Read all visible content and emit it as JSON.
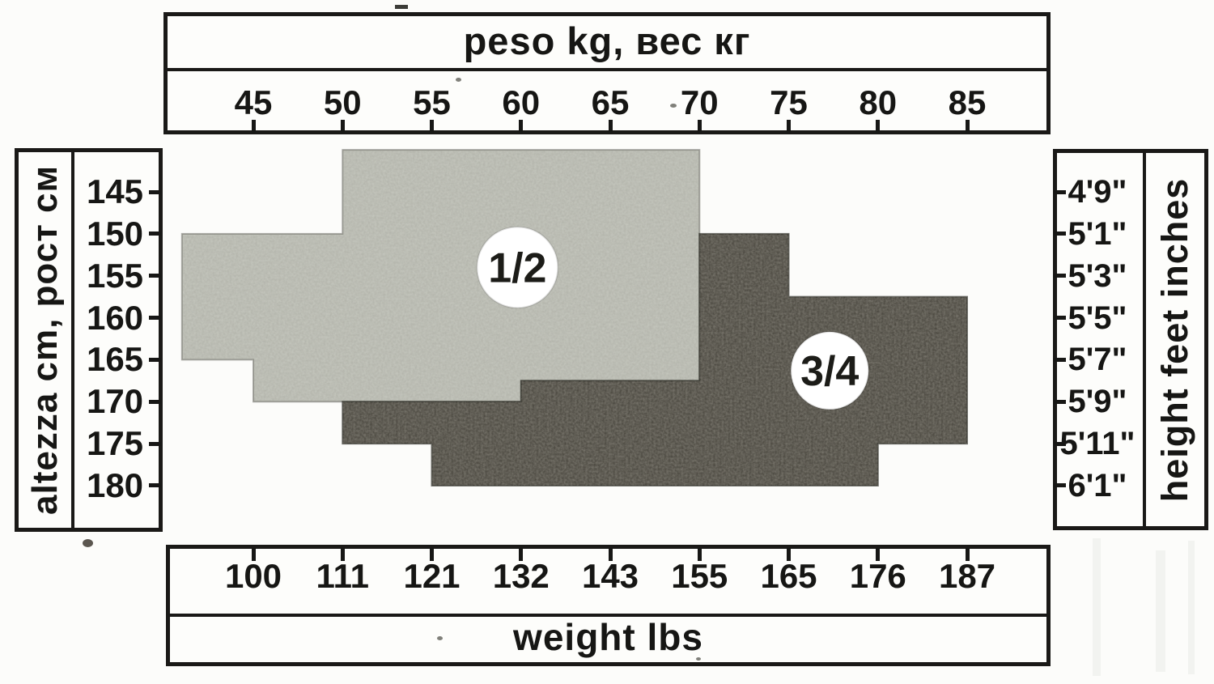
{
  "chart_data": {
    "type": "area",
    "title": "",
    "subtitle": "",
    "grid": false,
    "legend_position": "in-plot circular badges",
    "axes": {
      "top_x": {
        "label": "peso kg, вес кг",
        "unit": "kg",
        "ticks": [
          45,
          50,
          55,
          60,
          65,
          70,
          75,
          80,
          85
        ],
        "range": [
          40,
          90
        ]
      },
      "bottom_x": {
        "label": "weight lbs",
        "unit": "lbs",
        "ticks": [
          100,
          111,
          121,
          132,
          143,
          155,
          165,
          176,
          187
        ]
      },
      "left_y": {
        "label": "altezza cm, рост см",
        "unit": "cm",
        "ticks": [
          145,
          150,
          155,
          160,
          165,
          170,
          175,
          180
        ],
        "range": [
          140,
          183
        ]
      },
      "right_y": {
        "label": "height feet inches",
        "unit": "ft/in",
        "ticks": [
          "4'9\"",
          "5'1\"",
          "5'3\"",
          "5'5\"",
          "5'7\"",
          "5'9\"",
          "5'11\"",
          "6'1\""
        ]
      }
    },
    "series": [
      {
        "name": "1/2",
        "kind": "size-region",
        "fill": "#c6c8bf",
        "badge_fill": "#ffffff",
        "label_at_kg_cm": [
          59.8,
          154.0
        ],
        "outline_kg_cm": [
          [
            50,
            140
          ],
          [
            70,
            140
          ],
          [
            70,
            167.5
          ],
          [
            60,
            167.5
          ],
          [
            60,
            170
          ],
          [
            45,
            170
          ],
          [
            45,
            165
          ],
          [
            41,
            165
          ],
          [
            41,
            150
          ],
          [
            50,
            150
          ]
        ]
      },
      {
        "name": "3/4",
        "kind": "size-region",
        "fill": "#45423a",
        "badge_fill": "#ffffff",
        "label_at_kg_cm": [
          77.3,
          166.3
        ],
        "outline_kg_cm": [
          [
            70,
            150
          ],
          [
            75,
            150
          ],
          [
            75,
            157.5
          ],
          [
            85,
            157.5
          ],
          [
            85,
            175
          ],
          [
            80,
            175
          ],
          [
            80,
            180
          ],
          [
            55,
            180
          ],
          [
            55,
            175
          ],
          [
            50,
            175
          ],
          [
            50,
            170
          ],
          [
            60,
            170
          ],
          [
            60,
            167.5
          ],
          [
            70,
            167.5
          ]
        ]
      }
    ]
  }
}
